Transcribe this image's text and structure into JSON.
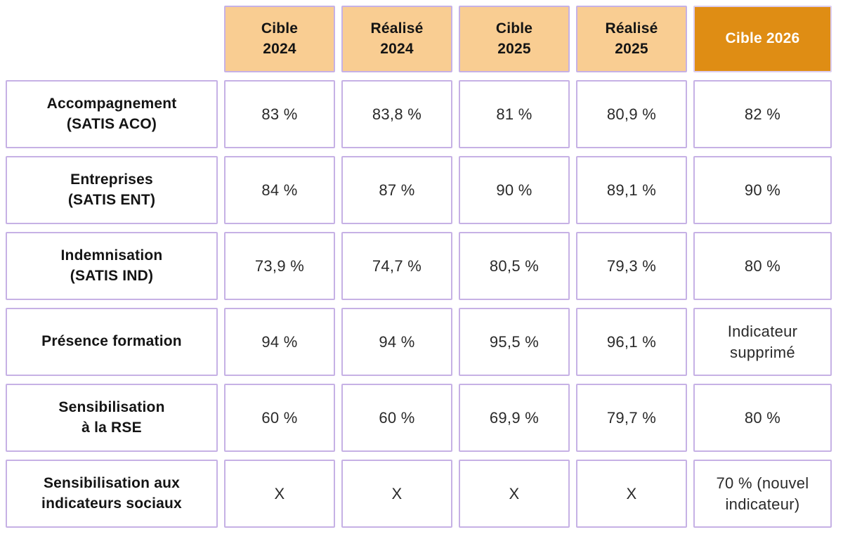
{
  "palette": {
    "header_peach": "#f9cd92",
    "header_orange": "#df8d14",
    "cell_border_lavender": "#c6b1e5",
    "header_text": "#141414",
    "value_text": "#2a2a2a",
    "background": "#ffffff"
  },
  "table": {
    "columns": [
      {
        "label": "Cible\n2024",
        "variant": "peach"
      },
      {
        "label": "Réalisé\n2024",
        "variant": "peach"
      },
      {
        "label": "Cible\n2025",
        "variant": "peach"
      },
      {
        "label": "Réalisé\n2025",
        "variant": "peach"
      },
      {
        "label": "Cible 2026",
        "variant": "orange"
      }
    ],
    "rows": [
      {
        "label": "Accompagnement\n(SATIS ACO)",
        "values": [
          "83 %",
          "83,8 %",
          "81 %",
          "80,9 %",
          "82 %"
        ]
      },
      {
        "label": "Entreprises\n(SATIS ENT)",
        "values": [
          "84 %",
          "87 %",
          "90 %",
          "89,1 %",
          "90 %"
        ]
      },
      {
        "label": "Indemnisation\n(SATIS IND)",
        "values": [
          "73,9 %",
          "74,7 %",
          "80,5 %",
          "79,3 %",
          "80 %"
        ]
      },
      {
        "label": "Présence formation",
        "values": [
          "94 %",
          "94 %",
          "95,5 %",
          "96,1 %",
          "Indicateur supprimé"
        ]
      },
      {
        "label": "Sensibilisation\nà la RSE",
        "values": [
          "60 %",
          "60 %",
          "69,9 %",
          "79,7 %",
          "80 %"
        ]
      },
      {
        "label": "Sensibilisation aux\nindicateurs sociaux",
        "values": [
          "X",
          "X",
          "X",
          "X",
          "70 % (nouvel indicateur)"
        ]
      }
    ]
  }
}
